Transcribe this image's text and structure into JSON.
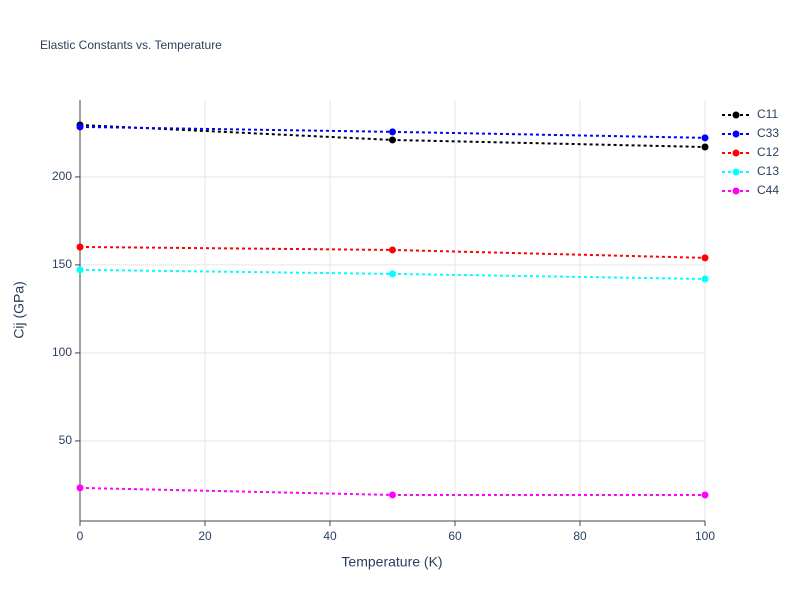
{
  "chart_data": {
    "type": "line",
    "title": "Elastic Constants vs. Temperature",
    "xlabel": "Temperature (K)",
    "ylabel": "Cij (GPa)",
    "x": [
      0,
      50,
      100
    ],
    "series": [
      {
        "name": "C11",
        "color": "#000000",
        "values": [
          229.5,
          221,
          217
        ]
      },
      {
        "name": "C33",
        "color": "#0000ff",
        "values": [
          228.4,
          225.6,
          222.2
        ]
      },
      {
        "name": "C12",
        "color": "#ff0000",
        "values": [
          160.2,
          158.5,
          154
        ]
      },
      {
        "name": "C13",
        "color": "#00ffff",
        "values": [
          147.2,
          144.9,
          142
        ]
      },
      {
        "name": "C44",
        "color": "#ff00ff",
        "values": [
          23.3,
          19.3,
          19.3
        ]
      }
    ],
    "xlim": [
      0,
      100
    ],
    "xticks": [
      0,
      20,
      40,
      60,
      80,
      100
    ],
    "ylim": [
      4.5,
      243.7
    ],
    "yticks": [
      50,
      100,
      150,
      200
    ],
    "grid": true,
    "line_style": "dot",
    "legend": "right"
  }
}
